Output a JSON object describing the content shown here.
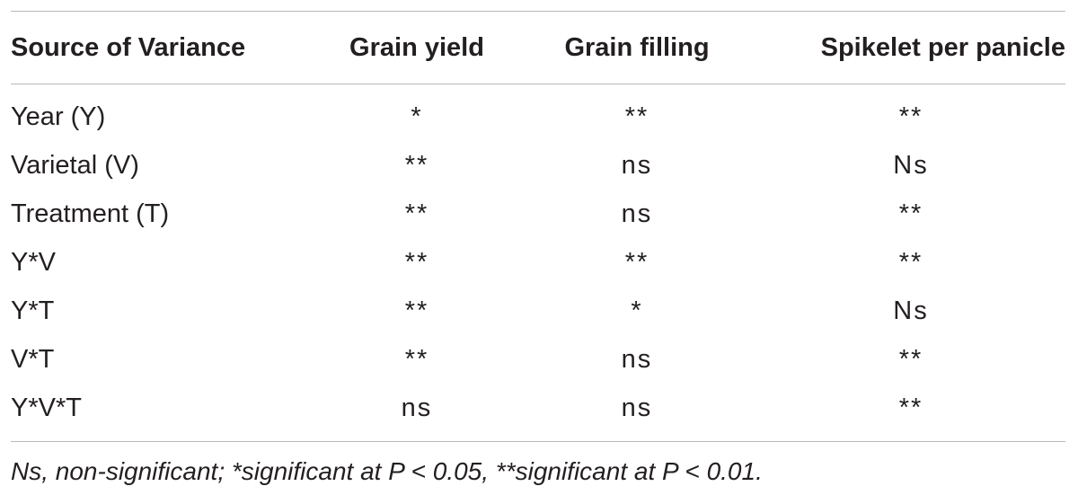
{
  "table": {
    "headers": [
      "Source of Variance",
      "Grain yield",
      "Grain filling",
      "Spikelet per panicle"
    ],
    "rows": [
      [
        "Year (Y)",
        "*",
        "**",
        "**"
      ],
      [
        "Varietal (V)",
        "**",
        "ns",
        "Ns"
      ],
      [
        "Treatment (T)",
        "**",
        "ns",
        "**"
      ],
      [
        "Y*V",
        "**",
        "**",
        "**"
      ],
      [
        "Y*T",
        "**",
        "*",
        "Ns"
      ],
      [
        "V*T",
        "**",
        "ns",
        "**"
      ],
      [
        "Y*V*T",
        "ns",
        "ns",
        "**"
      ]
    ]
  },
  "footnote": "Ns, non-significant; *significant at P < 0.05, **significant at P < 0.01."
}
